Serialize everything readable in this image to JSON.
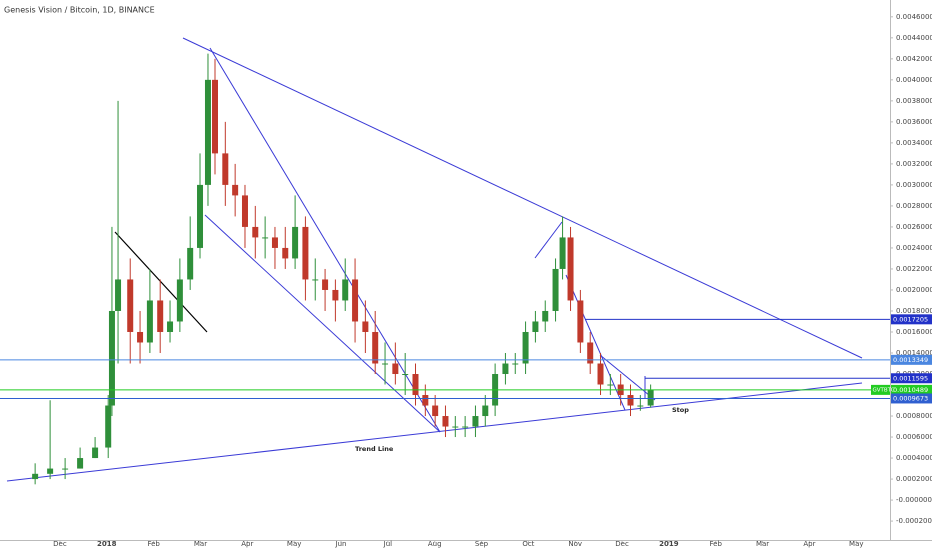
{
  "chart_data": {
    "type": "candlestick",
    "title": "Genesis Vision / Bitcoin, 1D, BINANCE",
    "annotations": [
      "Trend Line",
      "Stop"
    ],
    "up_color": "#2f8f3a",
    "down_color": "#c0392b",
    "x": [
      -0.53,
      -0.21,
      0.11,
      0.43,
      0.75,
      1.03,
      1.11,
      1.24,
      1.5,
      1.71,
      1.92,
      2.14,
      2.35,
      2.56,
      2.78,
      2.99,
      3.16,
      3.31,
      3.53,
      3.74,
      3.95,
      4.17,
      4.38,
      4.59,
      4.81,
      5.02,
      5.24,
      5.45,
      5.66,
      5.88,
      6.09,
      6.3,
      6.52,
      6.73,
      6.94,
      7.16,
      7.37,
      7.59,
      7.8,
      8.01,
      8.23,
      8.44,
      8.65,
      8.87,
      9.08,
      9.29,
      9.51,
      9.72,
      9.94,
      10.15,
      10.36,
      10.58,
      10.73,
      10.9,
      11.11,
      11.32,
      11.54,
      11.75,
      11.97,
      12.18,
      12.39,
      12.61
    ],
    "open": [
      0.0002,
      0.00025,
      0.0003,
      0.0003,
      0.0004,
      0.0005,
      0.0009,
      0.0018,
      0.0021,
      0.0016,
      0.0015,
      0.0019,
      0.0016,
      0.0017,
      0.0021,
      0.0024,
      0.003,
      0.004,
      0.0033,
      0.003,
      0.0029,
      0.0026,
      0.0025,
      0.0025,
      0.0024,
      0.0023,
      0.0026,
      0.0021,
      0.0021,
      0.002,
      0.0019,
      0.0021,
      0.0017,
      0.0016,
      0.0013,
      0.0013,
      0.0012,
      0.0012,
      0.001,
      0.0009,
      0.0008,
      0.0007,
      0.0007,
      0.0007,
      0.0008,
      0.0009,
      0.0012,
      0.0013,
      0.0013,
      0.0016,
      0.0017,
      0.0018,
      0.0022,
      0.0025,
      0.0019,
      0.0015,
      0.0013,
      0.0011,
      0.0011,
      0.001,
      0.0009,
      0.0009
    ],
    "high": [
      0.00035,
      0.00095,
      0.0004,
      0.0005,
      0.0006,
      0.001,
      0.0026,
      0.0038,
      0.0023,
      0.0018,
      0.0022,
      0.0021,
      0.0019,
      0.0023,
      0.0027,
      0.0033,
      0.00425,
      0.0042,
      0.0036,
      0.0032,
      0.003,
      0.0028,
      0.0027,
      0.0026,
      0.0026,
      0.0029,
      0.0027,
      0.0023,
      0.0022,
      0.0021,
      0.0023,
      0.0023,
      0.0019,
      0.0018,
      0.0015,
      0.0015,
      0.0014,
      0.0013,
      0.0011,
      0.001,
      0.0009,
      0.0008,
      0.0008,
      0.0009,
      0.001,
      0.0013,
      0.0014,
      0.0014,
      0.0017,
      0.0018,
      0.0019,
      0.0023,
      0.0027,
      0.0026,
      0.002,
      0.0016,
      0.0014,
      0.0012,
      0.0012,
      0.0011,
      0.001,
      0.0011
    ],
    "low": [
      0.00015,
      0.0002,
      0.0002,
      0.0003,
      0.0004,
      0.0004,
      0.0008,
      0.0013,
      0.0013,
      0.0013,
      0.0014,
      0.0014,
      0.0015,
      0.0016,
      0.002,
      0.0023,
      0.0028,
      0.0031,
      0.0028,
      0.0027,
      0.0024,
      0.0023,
      0.0023,
      0.0022,
      0.0022,
      0.0022,
      0.0019,
      0.0019,
      0.0018,
      0.0017,
      0.0018,
      0.0015,
      0.0014,
      0.0012,
      0.0011,
      0.0011,
      0.001,
      0.0009,
      0.0008,
      0.0007,
      0.0006,
      0.0006,
      0.0006,
      0.0006,
      0.0007,
      0.0008,
      0.0011,
      0.0012,
      0.0012,
      0.0015,
      0.0016,
      0.0017,
      0.0021,
      0.0018,
      0.0014,
      0.0012,
      0.001,
      0.001,
      0.0009,
      0.0008,
      0.00085,
      0.00088
    ],
    "close": [
      0.00025,
      0.0003,
      0.0003,
      0.0004,
      0.0005,
      0.0009,
      0.0018,
      0.0021,
      0.0016,
      0.0015,
      0.0019,
      0.0016,
      0.0017,
      0.0021,
      0.0024,
      0.003,
      0.004,
      0.0033,
      0.003,
      0.0029,
      0.0026,
      0.0025,
      0.0025,
      0.0024,
      0.0023,
      0.0026,
      0.0021,
      0.0021,
      0.002,
      0.0019,
      0.0021,
      0.0017,
      0.0016,
      0.0013,
      0.0013,
      0.0012,
      0.0012,
      0.001,
      0.0009,
      0.0008,
      0.0007,
      0.0007,
      0.0007,
      0.0008,
      0.0009,
      0.0012,
      0.0013,
      0.0013,
      0.0016,
      0.0017,
      0.0018,
      0.0022,
      0.0025,
      0.0019,
      0.0015,
      0.0013,
      0.0011,
      0.0011,
      0.001,
      0.0009,
      0.0009,
      0.0010489
    ],
    "xlim": [
      -1.28,
      17.72
    ],
    "xticks": [
      {
        "value": 0,
        "label": "Dec"
      },
      {
        "value": 1,
        "label": "2018"
      },
      {
        "value": 2,
        "label": "Feb"
      },
      {
        "value": 3,
        "label": "Mar"
      },
      {
        "value": 4,
        "label": "Apr"
      },
      {
        "value": 5,
        "label": "May"
      },
      {
        "value": 6,
        "label": "Jun"
      },
      {
        "value": 7,
        "label": "Jul"
      },
      {
        "value": 8,
        "label": "Aug"
      },
      {
        "value": 9,
        "label": "Sep"
      },
      {
        "value": 10,
        "label": "Oct"
      },
      {
        "value": 11,
        "label": "Nov"
      },
      {
        "value": 12,
        "label": "Dec"
      },
      {
        "value": 13,
        "label": "2019"
      },
      {
        "value": 14,
        "label": "Feb"
      },
      {
        "value": 15,
        "label": "Mar"
      },
      {
        "value": 16,
        "label": "Apr"
      },
      {
        "value": 17,
        "label": "May"
      }
    ],
    "ylim": [
      -0.00038,
      0.00476
    ],
    "yticks": [
      {
        "value": -0.0002,
        "label": "-0.0002000"
      },
      {
        "value": 0,
        "label": "-0.0000000"
      },
      {
        "value": 0.0002,
        "label": "0.0002000"
      },
      {
        "value": 0.0004,
        "label": "0.0004000"
      },
      {
        "value": 0.0006,
        "label": "0.0006000"
      },
      {
        "value": 0.0008,
        "label": "0.0008000"
      },
      {
        "value": 0.001,
        "label": "0.0010000"
      },
      {
        "value": 0.0012,
        "label": "0.0012000"
      },
      {
        "value": 0.0014,
        "label": "0.0014000"
      },
      {
        "value": 0.0016,
        "label": "0.0016000"
      },
      {
        "value": 0.0018,
        "label": "0.0018000"
      },
      {
        "value": 0.002,
        "label": "0.0020000"
      },
      {
        "value": 0.0022,
        "label": "0.0022000"
      },
      {
        "value": 0.0024,
        "label": "0.0024000"
      },
      {
        "value": 0.0026,
        "label": "0.0026000"
      },
      {
        "value": 0.0028,
        "label": "0.0028000"
      },
      {
        "value": 0.003,
        "label": "0.0030000"
      },
      {
        "value": 0.0032,
        "label": "0.0032000"
      },
      {
        "value": 0.0034,
        "label": "0.0034000"
      },
      {
        "value": 0.0036,
        "label": "0.0036000"
      },
      {
        "value": 0.0038,
        "label": "0.0038000"
      },
      {
        "value": 0.004,
        "label": "0.0040000"
      },
      {
        "value": 0.0042,
        "label": "0.0042000"
      },
      {
        "value": 0.0044,
        "label": "0.0044000"
      },
      {
        "value": 0.0046,
        "label": "0.0046000"
      }
    ],
    "price_lines": [
      {
        "value": 0.0017205,
        "color": "#2232c8"
      },
      {
        "value": 0.0013349,
        "color": "#4a86e0"
      },
      {
        "value": 0.0011595,
        "color": "#2232c8"
      },
      {
        "value": 0.0010489,
        "name": "GVTBTC",
        "color": "#22cc22"
      },
      {
        "value": 0.0009673,
        "color": "#2f5fd0"
      }
    ]
  }
}
